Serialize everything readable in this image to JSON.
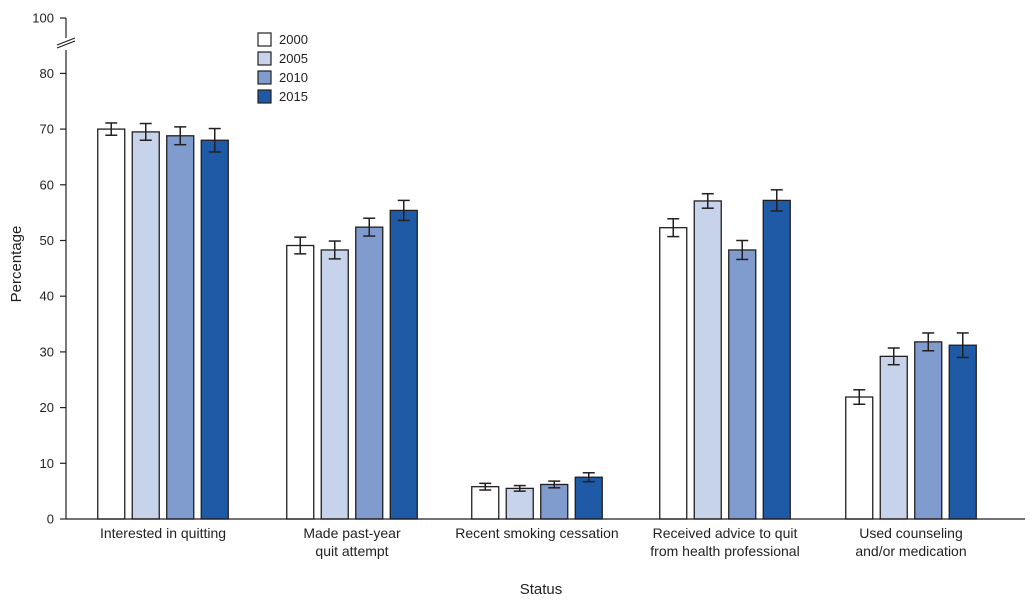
{
  "chart_data": {
    "type": "bar",
    "xlabel": "Status",
    "ylabel": "Percentage",
    "ylim": [
      0,
      100
    ],
    "y_ticks": [
      0,
      10,
      20,
      30,
      40,
      50,
      60,
      70,
      80,
      100
    ],
    "axis_break": "between 80 and 100",
    "legend_position": "top-left",
    "grid": false,
    "categories": [
      [
        "Interested in quitting"
      ],
      [
        "Made past-year",
        "quit attempt"
      ],
      [
        "Recent smoking cessation"
      ],
      [
        "Received advice to quit",
        "from health professional"
      ],
      [
        "Used counseling",
        "and/or medication"
      ]
    ],
    "series": [
      {
        "name": "2000",
        "color": "#ffffff",
        "values": [
          70.0,
          49.1,
          5.8,
          52.3,
          21.9
        ],
        "ci_low": [
          68.9,
          47.6,
          5.2,
          50.7,
          20.6
        ],
        "ci_high": [
          71.1,
          50.6,
          6.4,
          53.9,
          23.2
        ]
      },
      {
        "name": "2005",
        "color": "#c6d3ea",
        "values": [
          69.5,
          48.3,
          5.5,
          57.1,
          29.2
        ],
        "ci_low": [
          68.0,
          46.7,
          5.0,
          55.8,
          27.7
        ],
        "ci_high": [
          71.0,
          49.9,
          6.0,
          58.4,
          30.7
        ]
      },
      {
        "name": "2010",
        "color": "#809ccf",
        "values": [
          68.8,
          52.4,
          6.2,
          48.3,
          31.8
        ],
        "ci_low": [
          67.2,
          50.8,
          5.6,
          46.6,
          30.2
        ],
        "ci_high": [
          70.4,
          54.0,
          6.8,
          50.0,
          33.4
        ]
      },
      {
        "name": "2015",
        "color": "#1f5aa6",
        "values": [
          68.0,
          55.4,
          7.5,
          57.2,
          31.2
        ],
        "ci_low": [
          65.9,
          53.6,
          6.7,
          55.3,
          29.0
        ],
        "ci_high": [
          70.1,
          57.2,
          8.3,
          59.1,
          33.4
        ]
      }
    ]
  }
}
